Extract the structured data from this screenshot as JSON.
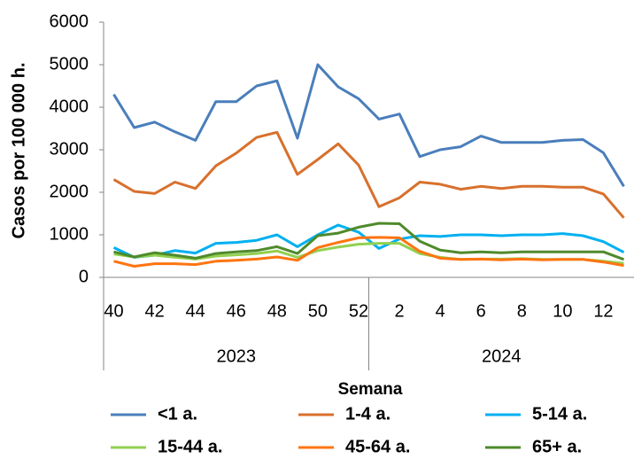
{
  "chart_data": {
    "type": "line",
    "y_label": "Casos por 100 000 h.",
    "x_label": "Semana",
    "categories": [
      40,
      null,
      42,
      null,
      44,
      null,
      46,
      null,
      48,
      null,
      50,
      null,
      52,
      null,
      2,
      null,
      4,
      null,
      6,
      null,
      8,
      null,
      10,
      null,
      12,
      null
    ],
    "x_groups": [
      "2023",
      "2024"
    ],
    "ylim": [
      0,
      6000
    ],
    "yticks": [
      0,
      1000,
      2000,
      3000,
      4000,
      5000,
      6000
    ],
    "grid": false,
    "legend": "bottom",
    "series": [
      {
        "name": "<1 a.",
        "color": "#4a7ebb",
        "values": [
          4300,
          3520,
          3650,
          3420,
          3220,
          4130,
          4130,
          4500,
          4620,
          3270,
          5000,
          4480,
          4200,
          3720,
          3840,
          2840,
          3000,
          3070,
          3320,
          3170,
          3170,
          3170,
          3220,
          3240,
          2930,
          2140
        ]
      },
      {
        "name": "1-4 a.",
        "color": "#d8702d",
        "values": [
          2300,
          2020,
          1970,
          2240,
          2090,
          2620,
          2920,
          3290,
          3410,
          2420,
          2770,
          3140,
          2640,
          1660,
          1870,
          2240,
          2190,
          2070,
          2140,
          2090,
          2140,
          2140,
          2120,
          2120,
          1960,
          1400
        ]
      },
      {
        "name": "5-14 a.",
        "color": "#00b0f0",
        "values": [
          700,
          470,
          520,
          630,
          570,
          800,
          820,
          870,
          1000,
          720,
          1000,
          1230,
          1060,
          680,
          900,
          980,
          960,
          1000,
          1000,
          980,
          1000,
          1000,
          1030,
          980,
          840,
          590
        ]
      },
      {
        "name": "15-44 a.",
        "color": "#92d050",
        "values": [
          550,
          480,
          520,
          470,
          430,
          500,
          530,
          560,
          620,
          470,
          630,
          710,
          780,
          800,
          800,
          560,
          470,
          420,
          430,
          430,
          440,
          420,
          420,
          420,
          380,
          330
        ]
      },
      {
        "name": "45-64 a.",
        "color": "#ff7410",
        "values": [
          380,
          260,
          320,
          320,
          300,
          380,
          400,
          430,
          480,
          400,
          700,
          820,
          930,
          940,
          930,
          610,
          450,
          420,
          430,
          410,
          430,
          410,
          420,
          420,
          360,
          280
        ]
      },
      {
        "name": "65+ a.",
        "color": "#4f8a2c",
        "values": [
          600,
          480,
          580,
          520,
          450,
          560,
          600,
          630,
          720,
          560,
          980,
          1040,
          1180,
          1270,
          1260,
          850,
          640,
          580,
          600,
          580,
          600,
          600,
          600,
          600,
          600,
          420
        ]
      }
    ]
  }
}
